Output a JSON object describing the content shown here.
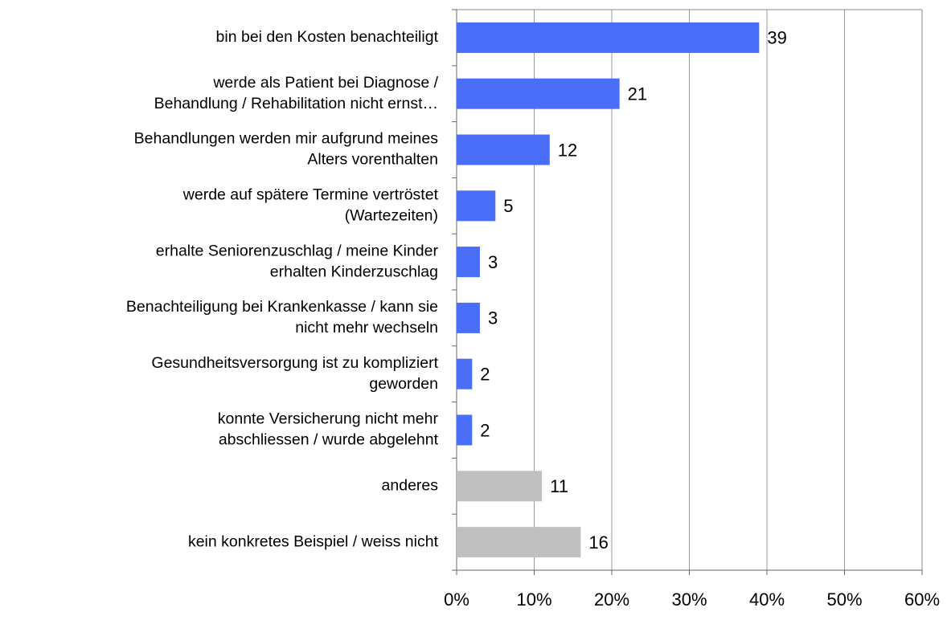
{
  "chart_data": {
    "type": "barh",
    "categories": [
      [
        "bin bei den Kosten benachteiligt"
      ],
      [
        "werde als Patient bei Diagnose /",
        "Behandlung / Rehabilitation nicht ernst…"
      ],
      [
        "Behandlungen werden mir aufgrund meines",
        "Alters vorenthalten"
      ],
      [
        "werde auf spätere Termine vertröstet",
        "(Wartezeiten)"
      ],
      [
        "erhalte Seniorenzuschlag / meine Kinder",
        "erhalten Kinderzuschlag"
      ],
      [
        "Benachteiligung bei Krankenkasse / kann sie",
        "nicht mehr wechseln"
      ],
      [
        "Gesundheitsversorgung ist zu kompliziert",
        "geworden"
      ],
      [
        "konnte Versicherung nicht mehr",
        "abschliessen / wurde abgelehnt"
      ],
      [
        "anderes"
      ],
      [
        "kein konkretes Beispiel / weiss nicht"
      ]
    ],
    "values": [
      39,
      21,
      12,
      5,
      3,
      3,
      2,
      2,
      11,
      16
    ],
    "colors": [
      "#4a6ef7",
      "#4a6ef7",
      "#4a6ef7",
      "#4a6ef7",
      "#4a6ef7",
      "#4a6ef7",
      "#4a6ef7",
      "#4a6ef7",
      "#c0c0c0",
      "#c0c0c0"
    ],
    "xlim": [
      0,
      60
    ],
    "xticks": [
      {
        "value": 0,
        "label": "0%"
      },
      {
        "value": 10,
        "label": "10%"
      },
      {
        "value": 20,
        "label": "20%"
      },
      {
        "value": 30,
        "label": "30%"
      },
      {
        "value": 40,
        "label": "40%"
      },
      {
        "value": 50,
        "label": "50%"
      },
      {
        "value": 60,
        "label": "60%"
      }
    ],
    "grid": true
  }
}
